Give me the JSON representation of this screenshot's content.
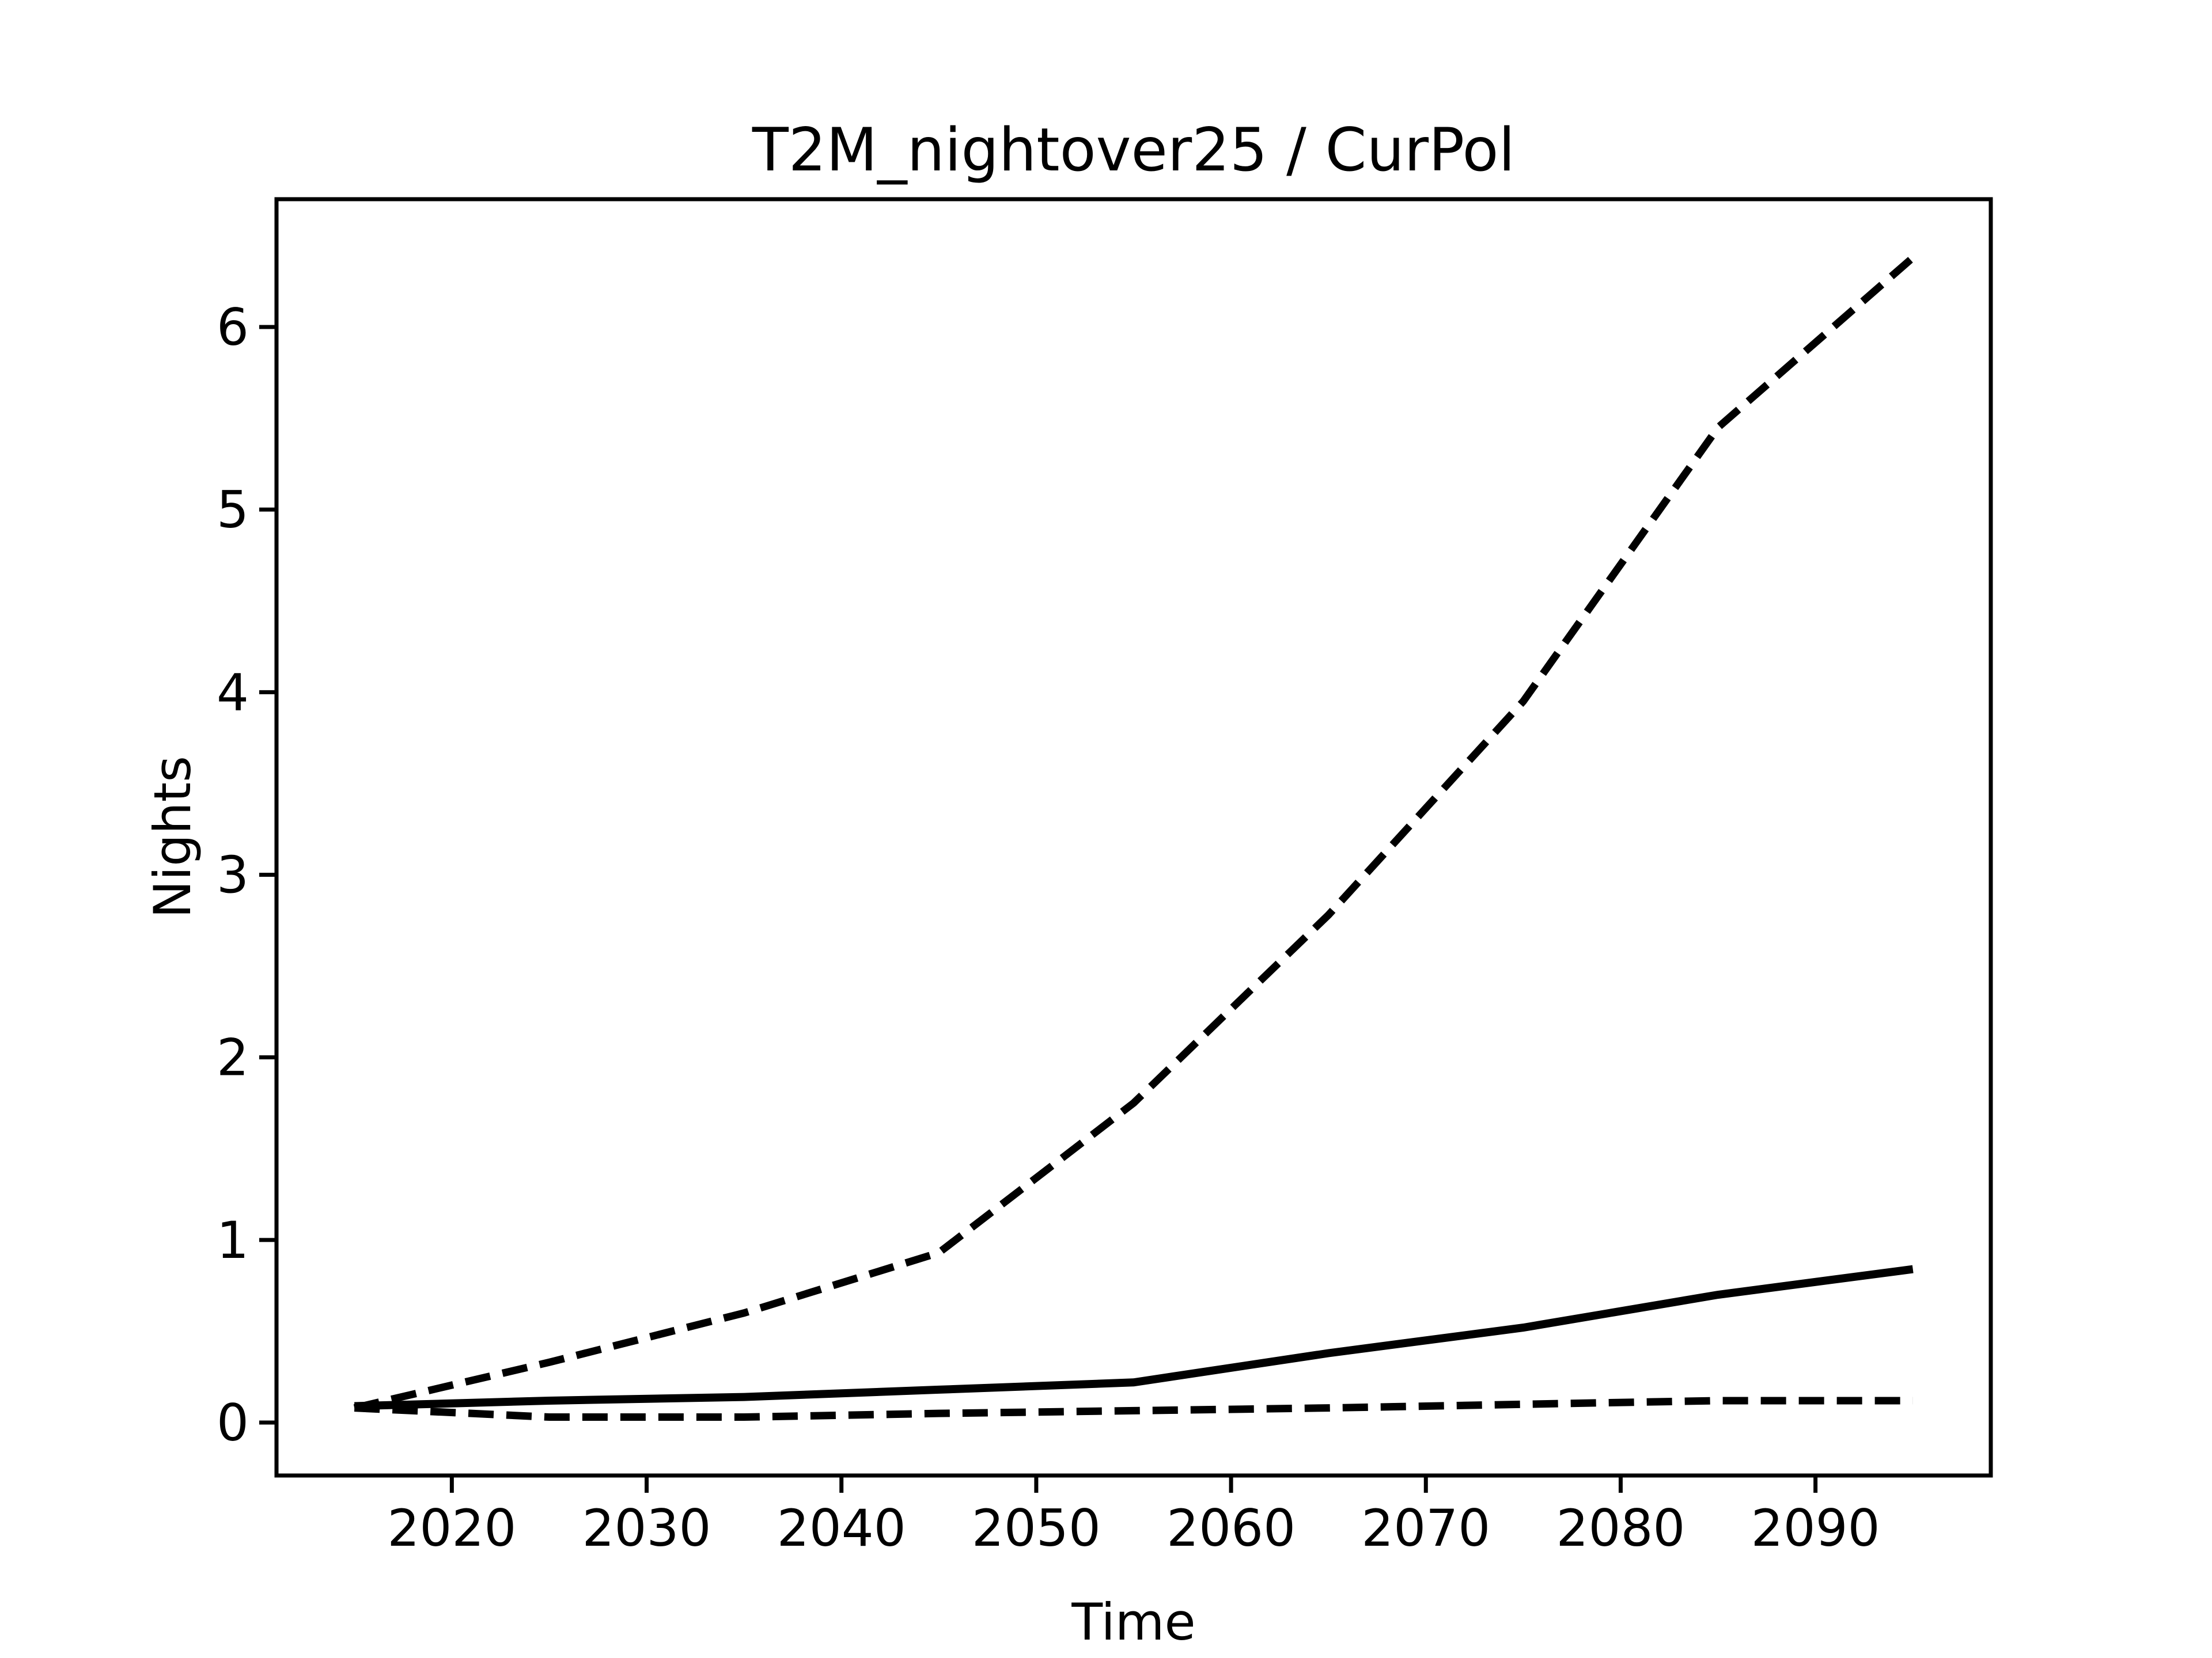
{
  "figure": {
    "background": "#ffffff",
    "foreground": "#000000"
  },
  "chart_data": {
    "type": "line",
    "title": "T2M_nightover25 / CurPol",
    "xlabel": "Time",
    "ylabel": "Nights",
    "x": [
      2015,
      2025,
      2035,
      2045,
      2055,
      2065,
      2075,
      2085,
      2095
    ],
    "series": [
      {
        "name": "upper_dashed",
        "style": "dashed",
        "values": [
          0.08,
          0.33,
          0.6,
          0.93,
          1.75,
          2.78,
          3.95,
          5.45,
          6.38
        ]
      },
      {
        "name": "solid",
        "style": "solid",
        "values": [
          0.09,
          0.12,
          0.14,
          0.18,
          0.22,
          0.38,
          0.52,
          0.7,
          0.84
        ]
      },
      {
        "name": "lower_dashed",
        "style": "dashed",
        "values": [
          0.08,
          0.03,
          0.03,
          0.05,
          0.065,
          0.08,
          0.1,
          0.12,
          0.12
        ]
      }
    ],
    "xticks": [
      2020,
      2030,
      2040,
      2050,
      2060,
      2070,
      2080,
      2090
    ],
    "yticks": [
      0,
      1,
      2,
      3,
      4,
      5,
      6
    ],
    "xlim": [
      2011,
      2099
    ],
    "ylim": [
      -0.29,
      6.7
    ],
    "grid": false,
    "legend": null,
    "line_color": "#000000"
  }
}
